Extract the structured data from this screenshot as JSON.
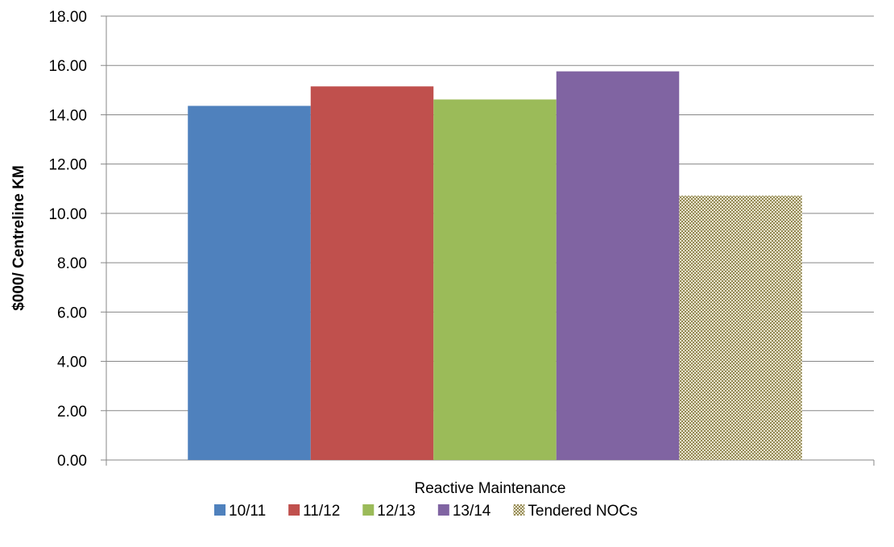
{
  "chart_data": {
    "type": "bar",
    "categories": [
      "Reactive Maintenance"
    ],
    "series": [
      {
        "name": "10/11",
        "values": [
          14.36
        ],
        "color": "#4F81BD",
        "pattern": "solid"
      },
      {
        "name": "11/12",
        "values": [
          15.15
        ],
        "color": "#C0504D",
        "pattern": "solid"
      },
      {
        "name": "12/13",
        "values": [
          14.62
        ],
        "color": "#9BBB59",
        "pattern": "solid"
      },
      {
        "name": "13/14",
        "values": [
          15.76
        ],
        "color": "#8064A2",
        "pattern": "solid"
      },
      {
        "name": "Tendered NOCs",
        "values": [
          10.72
        ],
        "color": "#C4BD97",
        "pattern": "dotted"
      }
    ],
    "title": "",
    "xlabel": "",
    "ylabel": "$000/ Centreline KM",
    "ylim": [
      0,
      18
    ],
    "yticks": [
      "0.00",
      "2.00",
      "4.00",
      "6.00",
      "8.00",
      "10.00",
      "12.00",
      "14.00",
      "16.00",
      "18.00"
    ],
    "grid": true,
    "legend_position": "bottom"
  }
}
